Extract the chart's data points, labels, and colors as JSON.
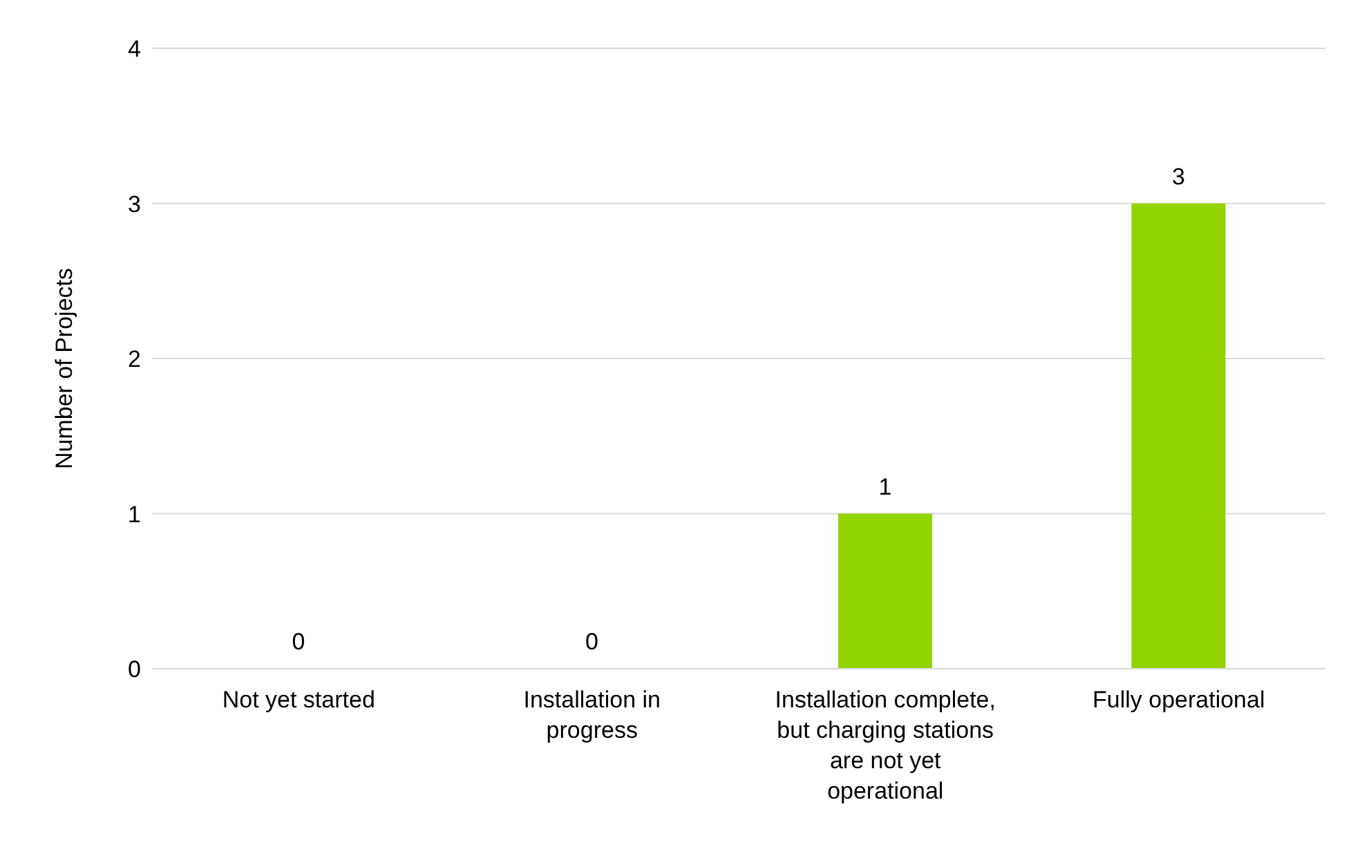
{
  "chart_data": {
    "type": "bar",
    "ylabel": "Number of Projects",
    "categories": [
      "Not yet started",
      "Installation in progress",
      "Installation complete, but charging stations are not yet operational",
      "Fully operational"
    ],
    "values": [
      0,
      0,
      1,
      3
    ],
    "color": "#92d400",
    "ylim": [
      0,
      4
    ],
    "yticks": [
      0,
      1,
      2,
      3,
      4
    ],
    "grid": "y",
    "data_labels": true
  }
}
